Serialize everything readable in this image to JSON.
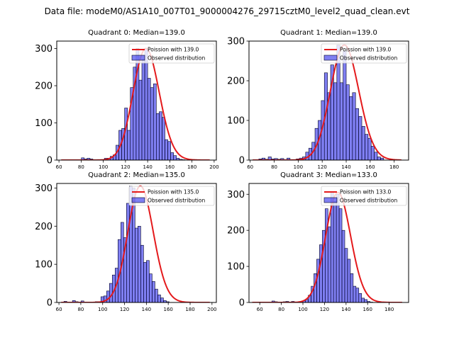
{
  "figure_title": "Data file: modeM0/AS1A10_007T01_9000004276_29715cztM0_level2_quad_clean.evt",
  "chart_data": [
    {
      "type": "bar",
      "title": "Quadrant 0: Median=139.0",
      "xticks": [
        60,
        80,
        100,
        120,
        140,
        160,
        180,
        200
      ],
      "yticks": [
        0,
        100,
        200,
        300
      ],
      "xlim": [
        58,
        202
      ],
      "ylim": [
        0,
        320
      ],
      "median": 139.0,
      "hist_start": 62,
      "bin_width": 2.6,
      "counts": [
        0,
        0,
        0,
        0,
        0,
        0,
        0,
        6,
        3,
        5,
        3,
        1,
        0,
        0,
        0,
        5,
        5,
        10,
        14,
        40,
        80,
        85,
        140,
        80,
        195,
        250,
        300,
        215,
        270,
        300,
        220,
        195,
        205,
        125,
        130,
        115,
        55,
        50,
        20,
        12,
        5,
        2,
        1,
        0,
        0,
        0,
        0,
        0,
        0,
        0,
        0,
        0,
        0
      ],
      "legend": {
        "curve_label": "Poission with 139.0",
        "hist_label": "Observed distribution",
        "location": "upper right"
      }
    },
    {
      "type": "bar",
      "title": "Quadrant 1: Median=139.0",
      "xticks": [
        60,
        80,
        100,
        120,
        140,
        160,
        180
      ],
      "yticks": [
        0,
        100,
        200,
        300
      ],
      "xlim": [
        59,
        192
      ],
      "ylim": [
        0,
        300
      ],
      "median": 139.0,
      "hist_start": 62,
      "bin_width": 2.6,
      "counts": [
        0,
        0,
        3,
        5,
        2,
        8,
        3,
        4,
        2,
        4,
        1,
        5,
        0,
        1,
        3,
        5,
        8,
        20,
        30,
        45,
        80,
        100,
        150,
        220,
        170,
        240,
        195,
        290,
        195,
        275,
        190,
        160,
        170,
        130,
        110,
        85,
        65,
        55,
        35,
        20,
        8,
        5,
        0,
        0,
        0,
        0,
        0,
        0,
        0,
        0
      ],
      "legend": {
        "curve_label": "Poission with 139.0",
        "hist_label": "Observed distribution",
        "location": "upper right"
      }
    },
    {
      "type": "bar",
      "title": "Quadrant 2: Median=135.0",
      "xticks": [
        60,
        80,
        100,
        120,
        140,
        160,
        180,
        200
      ],
      "yticks": [
        0,
        100,
        200,
        300
      ],
      "xlim": [
        58,
        204
      ],
      "ylim": [
        0,
        312
      ],
      "median": 135.0,
      "hist_start": 62,
      "bin_width": 2.6,
      "counts": [
        0,
        3,
        0,
        0,
        5,
        2,
        0,
        4,
        0,
        0,
        0,
        0,
        2,
        2,
        15,
        17,
        30,
        50,
        72,
        90,
        165,
        210,
        170,
        260,
        305,
        300,
        195,
        200,
        150,
        105,
        110,
        75,
        55,
        35,
        20,
        12,
        5,
        2,
        0,
        0,
        0,
        0,
        0,
        0,
        0,
        0,
        0,
        0,
        0,
        0,
        0,
        0,
        0,
        0,
        0
      ],
      "legend": {
        "curve_label": "Poission with 135.0",
        "hist_label": "Observed distribution",
        "location": "upper right"
      }
    },
    {
      "type": "bar",
      "title": "Quadrant 3: Median=133.0",
      "xticks": [
        60,
        80,
        100,
        120,
        140,
        160,
        180
      ],
      "yticks": [
        0,
        100,
        200,
        300
      ],
      "xlim": [
        50,
        198
      ],
      "ylim": [
        0,
        330
      ],
      "median": 133.0,
      "hist_start": 53,
      "bin_width": 2.6,
      "counts": [
        0,
        0,
        0,
        0,
        0,
        0,
        0,
        4,
        2,
        0,
        0,
        2,
        3,
        1,
        3,
        1,
        0,
        0,
        5,
        8,
        20,
        45,
        80,
        120,
        160,
        200,
        260,
        210,
        305,
        280,
        300,
        260,
        200,
        150,
        120,
        80,
        45,
        40,
        25,
        12,
        8,
        3,
        1,
        0,
        0,
        0,
        0,
        0,
        0,
        0,
        0,
        0,
        0,
        0,
        0,
        0
      ],
      "legend": {
        "curve_label": "Poission with 133.0",
        "hist_label": "Observed distribution",
        "location": "upper right"
      }
    }
  ]
}
